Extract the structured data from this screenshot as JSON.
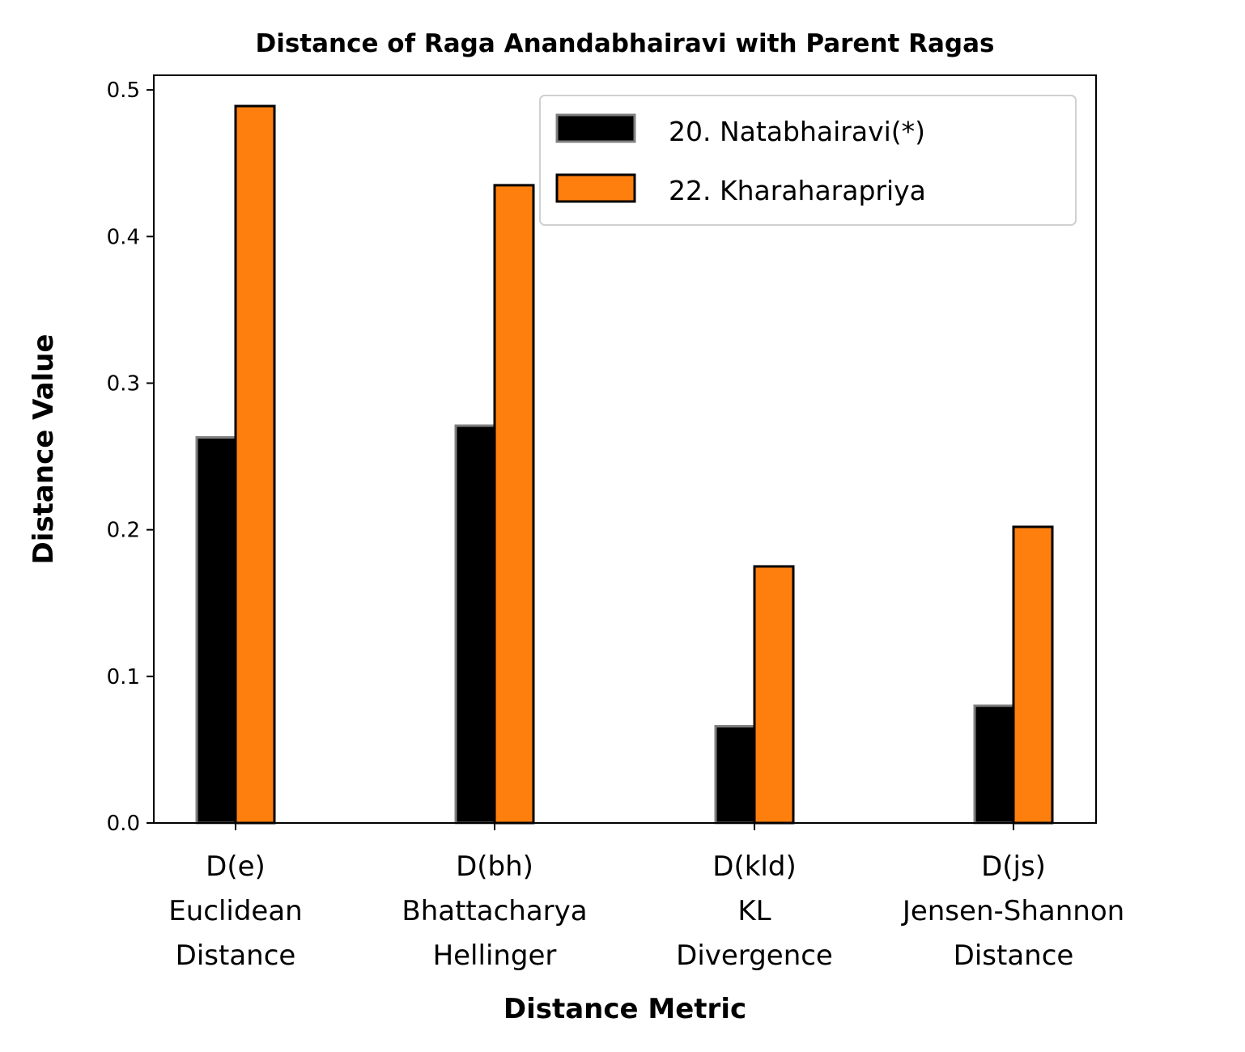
{
  "chart_data": {
    "type": "bar",
    "title": "Distance of Raga Anandabhairavi with Parent Ragas",
    "xlabel": "Distance Metric",
    "ylabel": "Distance Value",
    "categories": [
      [
        "D(e)",
        "Euclidean",
        "Distance"
      ],
      [
        "D(bh)",
        "Bhattacharya",
        "Hellinger"
      ],
      [
        "D(kld)",
        "KL",
        "Divergence"
      ],
      [
        "D(js)",
        "Jensen-Shannon",
        "Distance"
      ]
    ],
    "series": [
      {
        "name": "20. Natabhairavi(*)",
        "values": [
          0.263,
          0.271,
          0.066,
          0.08
        ],
        "color": "#000000",
        "edgecolor": "#808080"
      },
      {
        "name": "22. Kharaharapriya",
        "values": [
          0.489,
          0.435,
          0.175,
          0.202
        ],
        "color": "#ff7f0e",
        "edgecolor": "#000000"
      }
    ],
    "ylim": [
      0,
      0.51
    ],
    "yticks": [
      "0.0",
      "0.1",
      "0.2",
      "0.3",
      "0.4",
      "0.5"
    ],
    "grid": false,
    "legend_position": "top-right"
  }
}
